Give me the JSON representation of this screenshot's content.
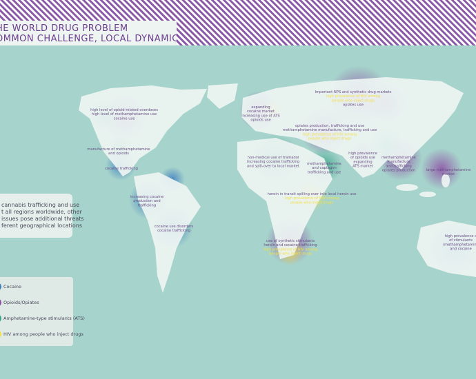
{
  "header": {
    "title_lines": [
      "HE WORLD DRUG PROBLEM",
      "OMMON CHALLENGE, LOCAL DYNAMIC"
    ]
  },
  "info_box": {
    "lines": [
      "cannabis trafficking and use",
      "t all regions worldwide, other",
      "issues pose additional threats",
      "ferent geographical locations"
    ]
  },
  "legend": {
    "items": [
      {
        "label": "Cocaine",
        "color": "#3f7fc0"
      },
      {
        "label": "Opioids/Opiates",
        "color": "#8e4fa6"
      },
      {
        "label": "Amphetamine-type stimulants (ATS)",
        "color": "#3aa58a"
      },
      {
        "label": "HIV among people who inject drugs",
        "color": "#f3e04a"
      }
    ]
  },
  "annotations": [
    {
      "lines": [
        {
          "text": "high level of opioid-related overdoses",
          "color": "#6a4f86"
        },
        {
          "text": "high level of methamphetamine use",
          "color": "#6a4f86"
        },
        {
          "text": "cocaine use",
          "color": "#6a4f86"
        }
      ]
    },
    {
      "lines": [
        {
          "text": "manufacture of methamphetamine",
          "color": "#6a4f86"
        },
        {
          "text": "and opioids",
          "color": "#6a4f86"
        }
      ]
    },
    {
      "lines": [
        {
          "text": "cocaine trafficking",
          "color": "#6a4f86"
        }
      ]
    },
    {
      "lines": [
        {
          "text": "increasing cocaine",
          "color": "#6a4f86"
        },
        {
          "text": "production and",
          "color": "#6a4f86"
        },
        {
          "text": "trafficking",
          "color": "#6a4f86"
        }
      ]
    },
    {
      "lines": [
        {
          "text": "cocaine use disorders",
          "color": "#6a4f86"
        },
        {
          "text": "cocaine trafficking",
          "color": "#6a4f86"
        }
      ]
    },
    {
      "lines": [
        {
          "text": "expanding",
          "color": "#6a4f86"
        },
        {
          "text": "cocaine market",
          "color": "#6a4f86"
        },
        {
          "text": "increasing use of ATS",
          "color": "#6a4f86"
        },
        {
          "text": "opioids use",
          "color": "#6a4f86"
        }
      ]
    },
    {
      "lines": [
        {
          "text": "Important NPS and synthetic drug markets",
          "color": "#6a4f86"
        },
        {
          "text": "high prevalence of HIV among",
          "color": "#f3e04a"
        },
        {
          "text": "people who inject drugs",
          "color": "#f3e04a"
        },
        {
          "text": "opiates use",
          "color": "#6a4f86"
        }
      ]
    },
    {
      "lines": [
        {
          "text": "opiates production, trafficking and use",
          "color": "#6a4f86"
        },
        {
          "text": "methamphetamine manufacture, trafficking and use",
          "color": "#6a4f86"
        },
        {
          "text": "high prevalence of HIV among",
          "color": "#f3e04a"
        },
        {
          "text": "people who inject drugs",
          "color": "#f3e04a"
        }
      ]
    },
    {
      "lines": [
        {
          "text": "non-medical use of tramadol",
          "color": "#6a4f86"
        },
        {
          "text": "increasing cocaine trafficking",
          "color": "#6a4f86"
        },
        {
          "text": "and spill-over to local market",
          "color": "#6a4f86"
        }
      ]
    },
    {
      "lines": [
        {
          "text": "methamphetamine",
          "color": "#6a4f86"
        },
        {
          "text": "and captagon",
          "color": "#6a4f86"
        },
        {
          "text": "trafficking and use",
          "color": "#6a4f86"
        }
      ]
    },
    {
      "lines": [
        {
          "text": "high prevalence",
          "color": "#6a4f86"
        },
        {
          "text": "of opioids use",
          "color": "#6a4f86"
        },
        {
          "text": "expanding",
          "color": "#6a4f86"
        },
        {
          "text": "ATS market",
          "color": "#6a4f86"
        }
      ]
    },
    {
      "lines": [
        {
          "text": "methamphetamine",
          "color": "#6a4f86"
        },
        {
          "text": "manufacture",
          "color": "#6a4f86"
        },
        {
          "text": "and trafficking",
          "color": "#6a4f86"
        },
        {
          "text": "opiates production",
          "color": "#6a4f86"
        }
      ]
    },
    {
      "lines": [
        {
          "text": "large methamphetamine",
          "color": "#6a4f86"
        },
        {
          "text": "market",
          "color": "#6a4f86"
        }
      ]
    },
    {
      "lines": [
        {
          "text": "heroin in transit spilling over into local heroin use",
          "color": "#6a4f86"
        },
        {
          "text": "high prevalence of HIV among",
          "color": "#f3e04a"
        },
        {
          "text": "people who inject drugs",
          "color": "#f3e04a"
        }
      ]
    },
    {
      "lines": [
        {
          "text": "use of synthetic stimulants",
          "color": "#6a4f86"
        },
        {
          "text": "heroin and cocaine trafficking",
          "color": "#6a4f86"
        },
        {
          "text": "high prevalence of HIV among",
          "color": "#f3e04a"
        },
        {
          "text": "people who inject drugs",
          "color": "#f3e04a"
        }
      ]
    },
    {
      "lines": [
        {
          "text": "high prevalence o",
          "color": "#6a4f86"
        },
        {
          "text": "of stimulants",
          "color": "#6a4f86"
        },
        {
          "text": "(methamphetamine",
          "color": "#6a4f86"
        },
        {
          "text": "and cocaine",
          "color": "#6a4f86"
        }
      ]
    }
  ]
}
